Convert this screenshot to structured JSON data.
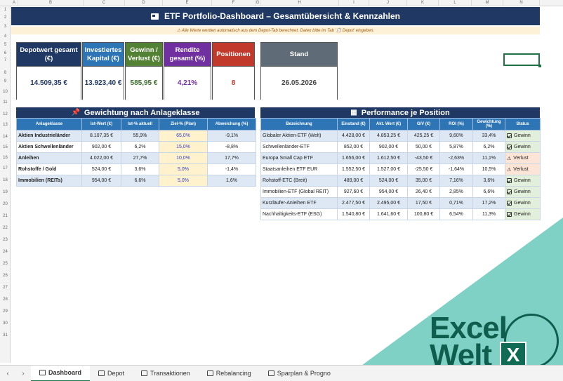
{
  "columns": [
    "A",
    "B",
    "C",
    "D",
    "E",
    "F",
    "G",
    "H",
    "I",
    "J",
    "K",
    "L",
    "M",
    "N"
  ],
  "rows": [
    "1",
    "2",
    "3",
    "4",
    "5",
    "6",
    "7",
    "8",
    "9",
    "10",
    "11",
    "12",
    "13",
    "14",
    "15",
    "16",
    "17",
    "18",
    "19",
    "20",
    "21",
    "22",
    "23",
    "24",
    "25",
    "26",
    "27",
    "28",
    "29",
    "30",
    "31"
  ],
  "title": "ETF Portfolio-Dashboard – Gesamtübersicht & Kennzahlen",
  "notice": "⚠  Alle Werte werden automatisch aus dem Depot-Tab berechnet. Daten bitte im Tab '📋 Depot' eingeben.",
  "kpis": [
    {
      "label": "Depotwert gesamt (€)",
      "value": "14.509,35 €",
      "head_color": "#1f3864",
      "value_color": "#1f3864"
    },
    {
      "label": "Investiertes Kapital (€)",
      "value": "13.923,40 €",
      "head_color": "#2e75b6",
      "value_color": "#1f3864"
    },
    {
      "label": "Gewinn / Verlust (€)",
      "value": "585,95 €",
      "head_color": "#548235",
      "value_color": "#3a6d2a"
    },
    {
      "label": "Rendite gesamt (%)",
      "value": "4,21%",
      "head_color": "#7030a0",
      "value_color": "#7030a0"
    },
    {
      "label": "Positionen",
      "value": "8",
      "head_color": "#c0392b",
      "value_color": "#c0392b"
    },
    {
      "label": "Stand",
      "value": "26.05.2026",
      "head_color": "#5f6b76",
      "value_color": "#444444"
    }
  ],
  "allocation": {
    "title": "Gewichtung nach Anlageklasse",
    "headers": [
      "Anlageklasse",
      "Ist-Wert (€)",
      "Ist-% aktuell",
      "Ziel-% (Plan)",
      "Abweichung (%)"
    ],
    "rows": [
      [
        "Aktien Industrieländer",
        "8.107,35 €",
        "55,9%",
        "65,0%",
        "-9,1%"
      ],
      [
        "Aktien Schwellenländer",
        "902,00 €",
        "6,2%",
        "15,0%",
        "-8,8%"
      ],
      [
        "Anleihen",
        "4.022,00 €",
        "27,7%",
        "10,0%",
        "17,7%"
      ],
      [
        "Rohstoffe / Gold",
        "524,00 €",
        "3,6%",
        "5,0%",
        "-1,4%"
      ],
      [
        "Immobilien (REITs)",
        "954,00 €",
        "6,6%",
        "5,0%",
        "1,6%"
      ]
    ]
  },
  "performance": {
    "title": "Performance je Position",
    "headers": [
      "Bezeichnung",
      "Einstand (€)",
      "Akt. Wert (€)",
      "G/V (€)",
      "ROI (%)",
      "Gewichtung (%)",
      "Status"
    ],
    "rows": [
      [
        "Globaler Aktien-ETF (Welt)",
        "4.428,00 €",
        "4.853,25 €",
        "425,25 €",
        "9,60%",
        "33,4%",
        "Gewinn"
      ],
      [
        "Schwellenländer-ETF",
        "852,00 €",
        "902,00 €",
        "50,00 €",
        "5,87%",
        "6,2%",
        "Gewinn"
      ],
      [
        "Europa Small Cap ETF",
        "1.656,00 €",
        "1.612,50 €",
        "-43,50 €",
        "-2,63%",
        "11,1%",
        "Verlust"
      ],
      [
        "Staatsanleihen ETF EUR",
        "1.552,50 €",
        "1.527,00 €",
        "-25,50 €",
        "-1,64%",
        "10,5%",
        "Verlust"
      ],
      [
        "Rohstoff-ETC (Breit)",
        "489,00 €",
        "524,00 €",
        "35,00 €",
        "7,16%",
        "3,6%",
        "Gewinn"
      ],
      [
        "Immobilien-ETF (Global REIT)",
        "927,60 €",
        "954,00 €",
        "26,40 €",
        "2,85%",
        "6,6%",
        "Gewinn"
      ],
      [
        "Kurzläufer-Anleihen ETF",
        "2.477,50 €",
        "2.495,00 €",
        "17,50 €",
        "0,71%",
        "17,2%",
        "Gewinn"
      ],
      [
        "Nachhaltigkeits-ETF (ESG)",
        "1.540,80 €",
        "1.641,60 €",
        "100,80 €",
        "6,54%",
        "11,3%",
        "Gewinn"
      ]
    ]
  },
  "tabs": [
    {
      "label": "Dashboard",
      "active": true
    },
    {
      "label": "Depot",
      "active": false
    },
    {
      "label": "Transaktionen",
      "active": false
    },
    {
      "label": "Rebalancing",
      "active": false
    },
    {
      "label": "Sparplan & Progno",
      "active": false
    }
  ],
  "nav": {
    "prev": "‹",
    "next": "›"
  },
  "watermark": {
    "line1": "Excel",
    "line2": "Welt",
    "badge": "X",
    "color": "#0f5d4d",
    "bg": "#7fd1c6"
  }
}
